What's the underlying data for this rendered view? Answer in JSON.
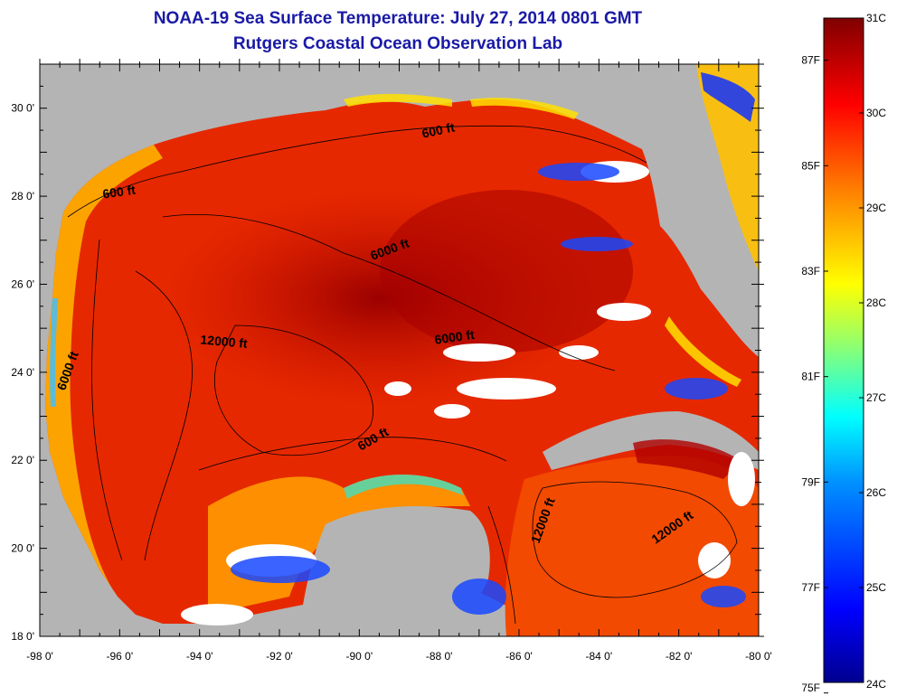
{
  "title": "NOAA-19 Sea Surface Temperature:  July 27, 2014 0801 GMT",
  "subtitle": "Rutgers Coastal Ocean Observation Lab",
  "axes": {
    "x_ticks": [
      "-98 0'",
      "-96 0'",
      "-94 0'",
      "-92 0'",
      "-90 0'",
      "-88 0'",
      "-86 0'",
      "-84 0'",
      "-82 0'",
      "-80 0'"
    ],
    "y_ticks": [
      "30 0'",
      "28 0'",
      "26 0'",
      "24 0'",
      "22 0'",
      "20 0'",
      "18 0'"
    ]
  },
  "contour_labels": [
    {
      "text": "600 ft",
      "lon": -96.0,
      "lat": 28.0,
      "angle": -8
    },
    {
      "text": "600 ft",
      "lon": -88.0,
      "lat": 29.4,
      "angle": -12
    },
    {
      "text": "6000 ft",
      "lon": -89.2,
      "lat": 26.7,
      "angle": -20
    },
    {
      "text": "12000 ft",
      "lon": -93.4,
      "lat": 24.6,
      "angle": 5
    },
    {
      "text": "6000 ft",
      "lon": -97.2,
      "lat": 24.0,
      "angle": -70
    },
    {
      "text": "6000 ft",
      "lon": -87.6,
      "lat": 24.7,
      "angle": -8
    },
    {
      "text": "600 ft",
      "lon": -89.6,
      "lat": 22.4,
      "angle": -30
    },
    {
      "text": "12000 ft",
      "lon": -85.3,
      "lat": 20.6,
      "angle": -70
    },
    {
      "text": "12000 ft",
      "lon": -82.1,
      "lat": 20.4,
      "angle": -35
    }
  ],
  "colorbar": {
    "celsius_labels": [
      "31C",
      "30C",
      "29C",
      "28C",
      "27C",
      "26C",
      "25C",
      "24C"
    ],
    "fahrenheit_labels": [
      "87F",
      "85F",
      "83F",
      "81F",
      "79F",
      "77F",
      "75F"
    ],
    "min_c": 24,
    "max_c": 31,
    "colors": [
      "#00008f",
      "#0000ff",
      "#0080ff",
      "#00ffff",
      "#80ff80",
      "#ffff00",
      "#ff8000",
      "#ff0000",
      "#800000"
    ]
  },
  "map_colors": {
    "land": "#b4b4b4",
    "no_data": "#ffffff",
    "warm_core": "#a80000",
    "warm": "#e02000",
    "mid": "#ff6000",
    "cool": "#ffd000",
    "cold": "#0050ff"
  }
}
